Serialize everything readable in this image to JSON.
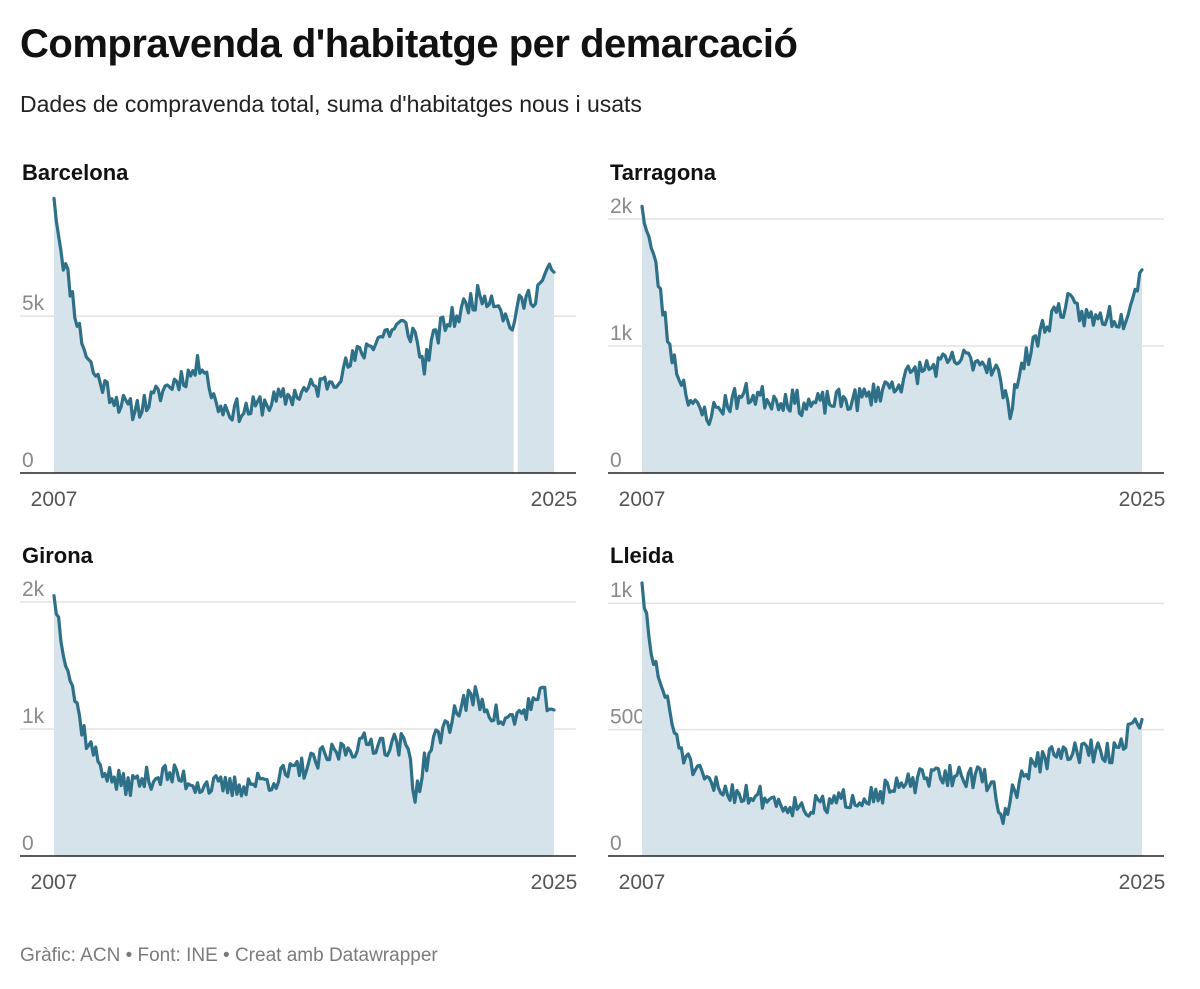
{
  "title": "Compravenda d'habitatge per demarcació",
  "subtitle": "Dades de compravenda total, suma d'habitatges nous i usats",
  "footer": "Gràfic: ACN • Font: INE • Creat amb Datawrapper",
  "colors": {
    "line": "#2e7087",
    "area": "#d6e3ea",
    "grid": "#e3e3e3",
    "axis": "#222222"
  },
  "chart_data": [
    {
      "type": "area",
      "title": "Barcelona",
      "x_range": [
        2007,
        2025
      ],
      "x_tick_labels": [
        "2007",
        "2025"
      ],
      "y_ticks": [
        0,
        5000
      ],
      "y_tick_labels": [
        "0",
        "5k"
      ],
      "ylim": [
        0,
        8700
      ],
      "gap_at_year": 2023.6,
      "anchors": [
        [
          2007.0,
          8750
        ],
        [
          2007.3,
          6900
        ],
        [
          2007.6,
          5900
        ],
        [
          2007.9,
          4600
        ],
        [
          2008.2,
          3700
        ],
        [
          2008.5,
          3100
        ],
        [
          2008.9,
          2700
        ],
        [
          2009.3,
          2300
        ],
        [
          2009.7,
          2000
        ],
        [
          2010.0,
          2100
        ],
        [
          2010.5,
          2300
        ],
        [
          2011.0,
          2700
        ],
        [
          2011.5,
          3000
        ],
        [
          2012.0,
          3200
        ],
        [
          2012.4,
          3600
        ],
        [
          2012.7,
          2400
        ],
        [
          2013.0,
          2100
        ],
        [
          2013.5,
          2000
        ],
        [
          2014.0,
          2000
        ],
        [
          2014.5,
          2200
        ],
        [
          2015.0,
          2300
        ],
        [
          2015.5,
          2450
        ],
        [
          2016.0,
          2600
        ],
        [
          2016.5,
          2750
        ],
        [
          2017.0,
          3000
        ],
        [
          2017.5,
          3350
        ],
        [
          2018.0,
          3800
        ],
        [
          2018.5,
          4200
        ],
        [
          2019.0,
          4500
        ],
        [
          2019.5,
          4700
        ],
        [
          2020.0,
          4400
        ],
        [
          2020.3,
          3400
        ],
        [
          2020.6,
          4100
        ],
        [
          2021.0,
          4700
        ],
        [
          2021.5,
          5000
        ],
        [
          2022.0,
          5500
        ],
        [
          2022.5,
          5700
        ],
        [
          2023.0,
          5500
        ],
        [
          2023.4,
          4600
        ],
        [
          2023.8,
          5400
        ],
        [
          2024.3,
          5700
        ],
        [
          2024.7,
          6300
        ],
        [
          2025.0,
          6400
        ]
      ],
      "noise": 380,
      "seed": 11
    },
    {
      "type": "area",
      "title": "Tarragona",
      "x_range": [
        2007,
        2025
      ],
      "x_tick_labels": [
        "2007",
        "2025"
      ],
      "y_ticks": [
        0,
        1000,
        2000
      ],
      "y_tick_labels": [
        "0",
        "1k",
        "2k"
      ],
      "ylim": [
        0,
        2150
      ],
      "anchors": [
        [
          2007.0,
          2100
        ],
        [
          2007.3,
          1800
        ],
        [
          2007.6,
          1500
        ],
        [
          2007.9,
          1100
        ],
        [
          2008.2,
          850
        ],
        [
          2008.6,
          650
        ],
        [
          2009.0,
          480
        ],
        [
          2009.4,
          460
        ],
        [
          2009.8,
          520
        ],
        [
          2010.3,
          580
        ],
        [
          2010.8,
          620
        ],
        [
          2011.3,
          600
        ],
        [
          2011.8,
          580
        ],
        [
          2012.3,
          580
        ],
        [
          2012.8,
          540
        ],
        [
          2013.3,
          540
        ],
        [
          2013.8,
          560
        ],
        [
          2014.3,
          570
        ],
        [
          2014.8,
          580
        ],
        [
          2015.3,
          620
        ],
        [
          2015.8,
          680
        ],
        [
          2016.3,
          720
        ],
        [
          2016.8,
          790
        ],
        [
          2017.3,
          830
        ],
        [
          2017.8,
          850
        ],
        [
          2018.3,
          880
        ],
        [
          2018.8,
          900
        ],
        [
          2019.3,
          880
        ],
        [
          2019.7,
          850
        ],
        [
          2020.0,
          640
        ],
        [
          2020.2,
          470
        ],
        [
          2020.5,
          750
        ],
        [
          2020.9,
          920
        ],
        [
          2021.3,
          1100
        ],
        [
          2021.8,
          1250
        ],
        [
          2022.3,
          1330
        ],
        [
          2022.8,
          1250
        ],
        [
          2023.3,
          1200
        ],
        [
          2023.8,
          1250
        ],
        [
          2024.3,
          1200
        ],
        [
          2024.7,
          1450
        ],
        [
          2025.0,
          1600
        ]
      ],
      "noise": 95,
      "seed": 23
    },
    {
      "type": "area",
      "title": "Girona",
      "x_range": [
        2007,
        2025
      ],
      "x_tick_labels": [
        "2007",
        "2025"
      ],
      "y_ticks": [
        0,
        1000,
        2000
      ],
      "y_tick_labels": [
        "0",
        "1k",
        "2k"
      ],
      "ylim": [
        0,
        2150
      ],
      "anchors": [
        [
          2007.0,
          2050
        ],
        [
          2007.3,
          1700
        ],
        [
          2007.6,
          1400
        ],
        [
          2007.9,
          1100
        ],
        [
          2008.2,
          900
        ],
        [
          2008.6,
          750
        ],
        [
          2009.0,
          620
        ],
        [
          2009.5,
          560
        ],
        [
          2010.0,
          580
        ],
        [
          2010.5,
          620
        ],
        [
          2011.0,
          640
        ],
        [
          2011.5,
          620
        ],
        [
          2012.0,
          580
        ],
        [
          2012.5,
          560
        ],
        [
          2013.0,
          540
        ],
        [
          2013.5,
          540
        ],
        [
          2014.0,
          570
        ],
        [
          2014.5,
          590
        ],
        [
          2015.0,
          610
        ],
        [
          2015.5,
          650
        ],
        [
          2016.0,
          700
        ],
        [
          2016.5,
          750
        ],
        [
          2017.0,
          800
        ],
        [
          2017.5,
          850
        ],
        [
          2018.0,
          870
        ],
        [
          2018.5,
          900
        ],
        [
          2019.0,
          880
        ],
        [
          2019.5,
          880
        ],
        [
          2019.8,
          830
        ],
        [
          2020.0,
          460
        ],
        [
          2020.3,
          700
        ],
        [
          2020.7,
          900
        ],
        [
          2021.2,
          1050
        ],
        [
          2021.7,
          1200
        ],
        [
          2022.2,
          1250
        ],
        [
          2022.7,
          1150
        ],
        [
          2023.2,
          1050
        ],
        [
          2023.7,
          1100
        ],
        [
          2024.2,
          1200
        ],
        [
          2024.7,
          1250
        ],
        [
          2025.0,
          1150
        ]
      ],
      "noise": 95,
      "seed": 37
    },
    {
      "type": "area",
      "title": "Lleida",
      "x_range": [
        2007,
        2025
      ],
      "x_tick_labels": [
        "2007",
        "2025"
      ],
      "y_ticks": [
        0,
        500,
        1000
      ],
      "y_tick_labels": [
        "0",
        "500",
        "1k"
      ],
      "ylim": [
        0,
        1080
      ],
      "anchors": [
        [
          2007.0,
          1080
        ],
        [
          2007.3,
          800
        ],
        [
          2007.6,
          720
        ],
        [
          2007.9,
          600
        ],
        [
          2008.2,
          480
        ],
        [
          2008.6,
          380
        ],
        [
          2009.0,
          320
        ],
        [
          2009.5,
          280
        ],
        [
          2010.0,
          260
        ],
        [
          2010.5,
          250
        ],
        [
          2011.0,
          240
        ],
        [
          2011.5,
          230
        ],
        [
          2012.0,
          210
        ],
        [
          2012.5,
          200
        ],
        [
          2013.0,
          190
        ],
        [
          2013.5,
          200
        ],
        [
          2014.0,
          210
        ],
        [
          2014.5,
          230
        ],
        [
          2015.0,
          240
        ],
        [
          2015.5,
          250
        ],
        [
          2016.0,
          260
        ],
        [
          2016.5,
          280
        ],
        [
          2017.0,
          300
        ],
        [
          2017.5,
          310
        ],
        [
          2018.0,
          320
        ],
        [
          2018.5,
          320
        ],
        [
          2019.0,
          310
        ],
        [
          2019.5,
          300
        ],
        [
          2019.8,
          220
        ],
        [
          2020.0,
          140
        ],
        [
          2020.4,
          260
        ],
        [
          2020.9,
          340
        ],
        [
          2021.4,
          380
        ],
        [
          2021.9,
          400
        ],
        [
          2022.4,
          400
        ],
        [
          2022.9,
          420
        ],
        [
          2023.4,
          410
        ],
        [
          2023.8,
          400
        ],
        [
          2024.3,
          450
        ],
        [
          2024.7,
          520
        ],
        [
          2025.0,
          540
        ]
      ],
      "noise": 45,
      "seed": 51
    }
  ]
}
